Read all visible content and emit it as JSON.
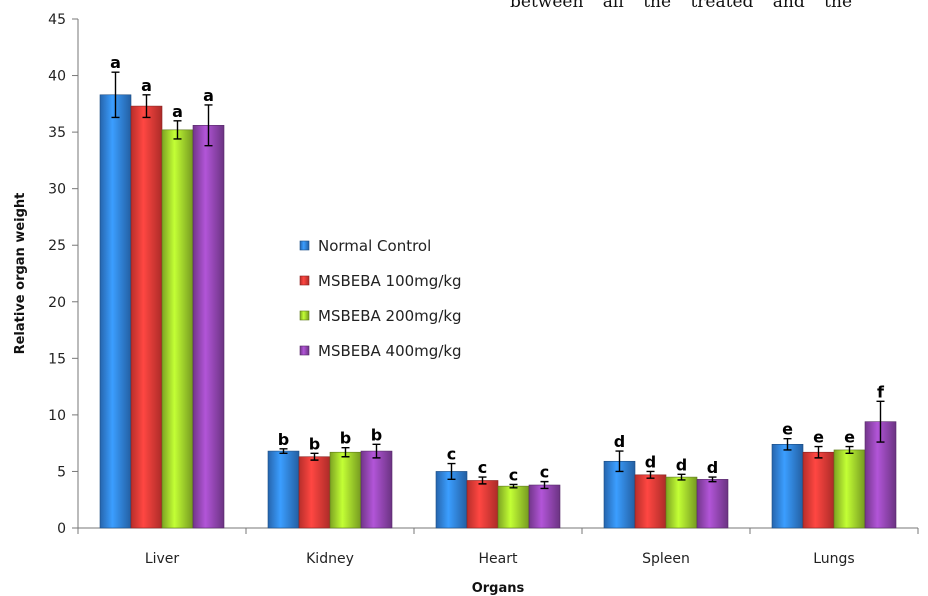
{
  "header_fragment": "between all the treated and the",
  "chart_data": {
    "type": "bar",
    "title": "",
    "xlabel": "Organs",
    "ylabel": "Relative organ weight",
    "ylim": [
      0,
      45
    ],
    "yticks": [
      0,
      5,
      10,
      15,
      20,
      25,
      30,
      35,
      40,
      45
    ],
    "grid": false,
    "legend_position": "center",
    "categories": [
      "Liver",
      "Kidney",
      "Heart",
      "Spleen",
      "Lungs"
    ],
    "series": [
      {
        "name": "Normal Control",
        "color": "#2f7ed8",
        "values": [
          38.3,
          6.8,
          5.0,
          5.9,
          7.4
        ],
        "errors": [
          2.0,
          0.2,
          0.7,
          0.9,
          0.5
        ],
        "letters": [
          "a",
          "b",
          "c",
          "d",
          "e"
        ]
      },
      {
        "name": "MSBEBA 100mg/kg",
        "color": "#e53935",
        "values": [
          37.3,
          6.3,
          4.2,
          4.7,
          6.7
        ],
        "errors": [
          1.0,
          0.3,
          0.3,
          0.3,
          0.5
        ],
        "letters": [
          "a",
          "b",
          "c",
          "d",
          "e"
        ]
      },
      {
        "name": "MSBEBA 200mg/kg",
        "color": "#9ccc2a",
        "values": [
          35.2,
          6.7,
          3.7,
          4.5,
          6.9
        ],
        "errors": [
          0.8,
          0.4,
          0.15,
          0.25,
          0.3
        ],
        "letters": [
          "a",
          "b",
          "c",
          "d",
          "e"
        ]
      },
      {
        "name": "MSBEBA 400mg/kg",
        "color": "#8e44ad",
        "values": [
          35.6,
          6.8,
          3.8,
          4.3,
          9.4
        ],
        "errors": [
          1.8,
          0.6,
          0.3,
          0.2,
          1.8
        ],
        "letters": [
          "a",
          "b",
          "c",
          "d",
          "f"
        ]
      }
    ]
  }
}
